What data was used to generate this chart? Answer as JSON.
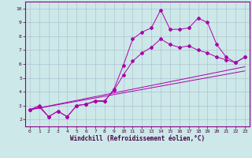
{
  "title": "",
  "xlabel": "Windchill (Refroidissement éolien,°C)",
  "ylabel": "",
  "background_color": "#cce8e8",
  "line_color": "#aa00aa",
  "xlim": [
    -0.5,
    23.5
  ],
  "ylim": [
    1.5,
    10.5
  ],
  "yticks": [
    2,
    3,
    4,
    5,
    6,
    7,
    8,
    9,
    10
  ],
  "xticks": [
    0,
    1,
    2,
    3,
    4,
    5,
    6,
    7,
    8,
    9,
    10,
    11,
    12,
    13,
    14,
    15,
    16,
    17,
    18,
    19,
    20,
    21,
    22,
    23
  ],
  "grid_color": "#aabbcc",
  "series1_x": [
    0,
    1,
    2,
    3,
    4,
    5,
    6,
    7,
    8,
    9,
    10,
    11,
    12,
    13,
    14,
    15,
    16,
    17,
    18,
    19,
    20,
    21,
    22,
    23
  ],
  "series1_y": [
    2.7,
    3.0,
    2.2,
    2.6,
    2.2,
    3.0,
    3.1,
    3.3,
    3.3,
    4.2,
    5.9,
    7.8,
    8.3,
    8.6,
    9.9,
    8.5,
    8.5,
    8.6,
    9.3,
    9.0,
    7.4,
    6.5,
    6.1,
    6.5
  ],
  "series2_x": [
    0,
    1,
    2,
    3,
    4,
    5,
    6,
    7,
    8,
    9,
    10,
    11,
    12,
    13,
    14,
    15,
    16,
    17,
    18,
    19,
    20,
    21,
    22,
    23
  ],
  "series2_y": [
    2.7,
    2.9,
    2.2,
    2.6,
    2.2,
    3.0,
    3.1,
    3.35,
    3.35,
    4.1,
    5.2,
    6.2,
    6.8,
    7.2,
    7.8,
    7.4,
    7.2,
    7.3,
    7.0,
    6.8,
    6.5,
    6.3,
    6.1,
    6.5
  ],
  "series3_x": [
    0,
    23
  ],
  "series3_y": [
    2.7,
    5.8
  ],
  "series4_x": [
    0,
    23
  ],
  "series4_y": [
    2.7,
    5.5
  ],
  "tick_fontsize": 4.5,
  "xlabel_fontsize": 5.5,
  "marker_size": 2.0,
  "line_width": 0.7
}
